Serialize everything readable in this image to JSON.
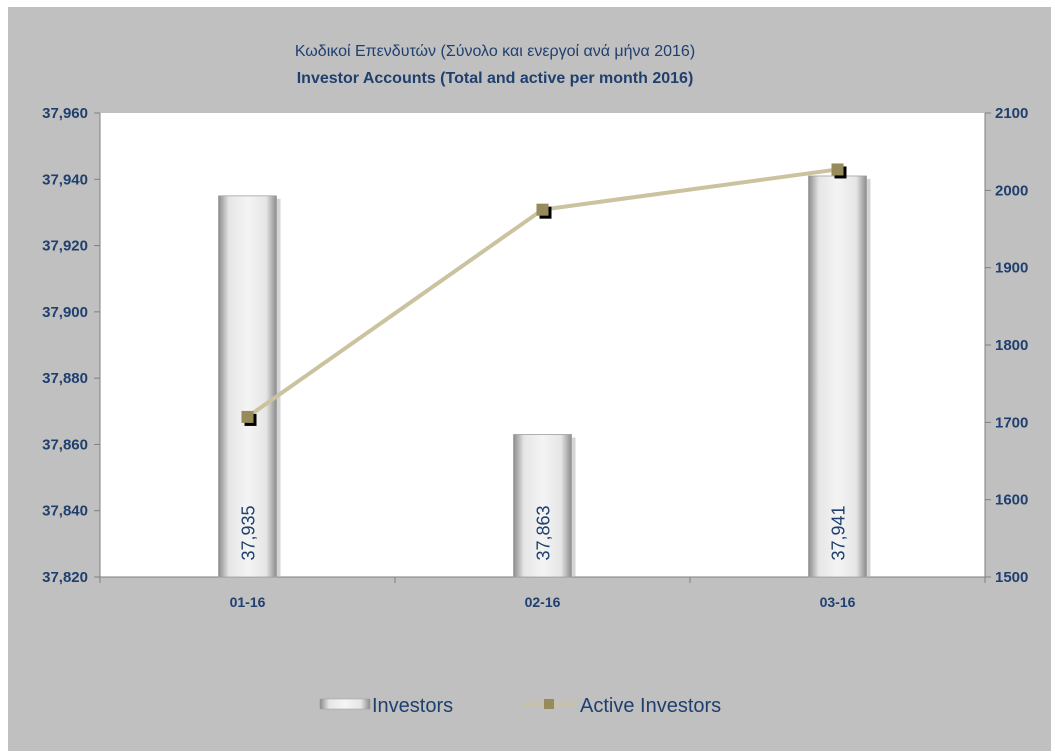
{
  "colors": {
    "background": "#c0c0c0",
    "plot_area": "#ffffff",
    "text": "#1f3f6e",
    "line": "#cbc29f",
    "marker": "#978a5b",
    "bar_light": "#f2f2f2",
    "bar_dark": "#8c8c8c"
  },
  "chart_data": {
    "type": "bar",
    "title": "Κωδικοί Επενδυτών (Σύνολο και ενεργοί ανά μήνα 2016)",
    "subtitle": "Investor Accounts (Total and active per month 2016)",
    "categories": [
      "01-16",
      "02-16",
      "03-16"
    ],
    "series": [
      {
        "name": "Investors",
        "type": "bar",
        "axis": "left",
        "values": [
          37935,
          37863,
          37941
        ],
        "labels": [
          "37,935",
          "37,863",
          "37,941"
        ]
      },
      {
        "name": "Active Investors",
        "type": "line",
        "axis": "right",
        "values": [
          1707,
          1975,
          2027
        ]
      }
    ],
    "y_left": {
      "ylim": [
        37820,
        37960
      ],
      "ticks": [
        37820,
        37840,
        37860,
        37880,
        37900,
        37920,
        37940,
        37960
      ],
      "tick_labels": [
        "37,820",
        "37,840",
        "37,860",
        "37,880",
        "37,900",
        "37,920",
        "37,940",
        "37,960"
      ]
    },
    "y_right": {
      "ylim": [
        1500,
        2100
      ],
      "ticks": [
        1500,
        1600,
        1700,
        1800,
        1900,
        2000,
        2100
      ],
      "tick_labels": [
        "1500",
        "1600",
        "1700",
        "1800",
        "1900",
        "2000",
        "2100"
      ]
    },
    "grid": false,
    "legend_position": "bottom"
  }
}
